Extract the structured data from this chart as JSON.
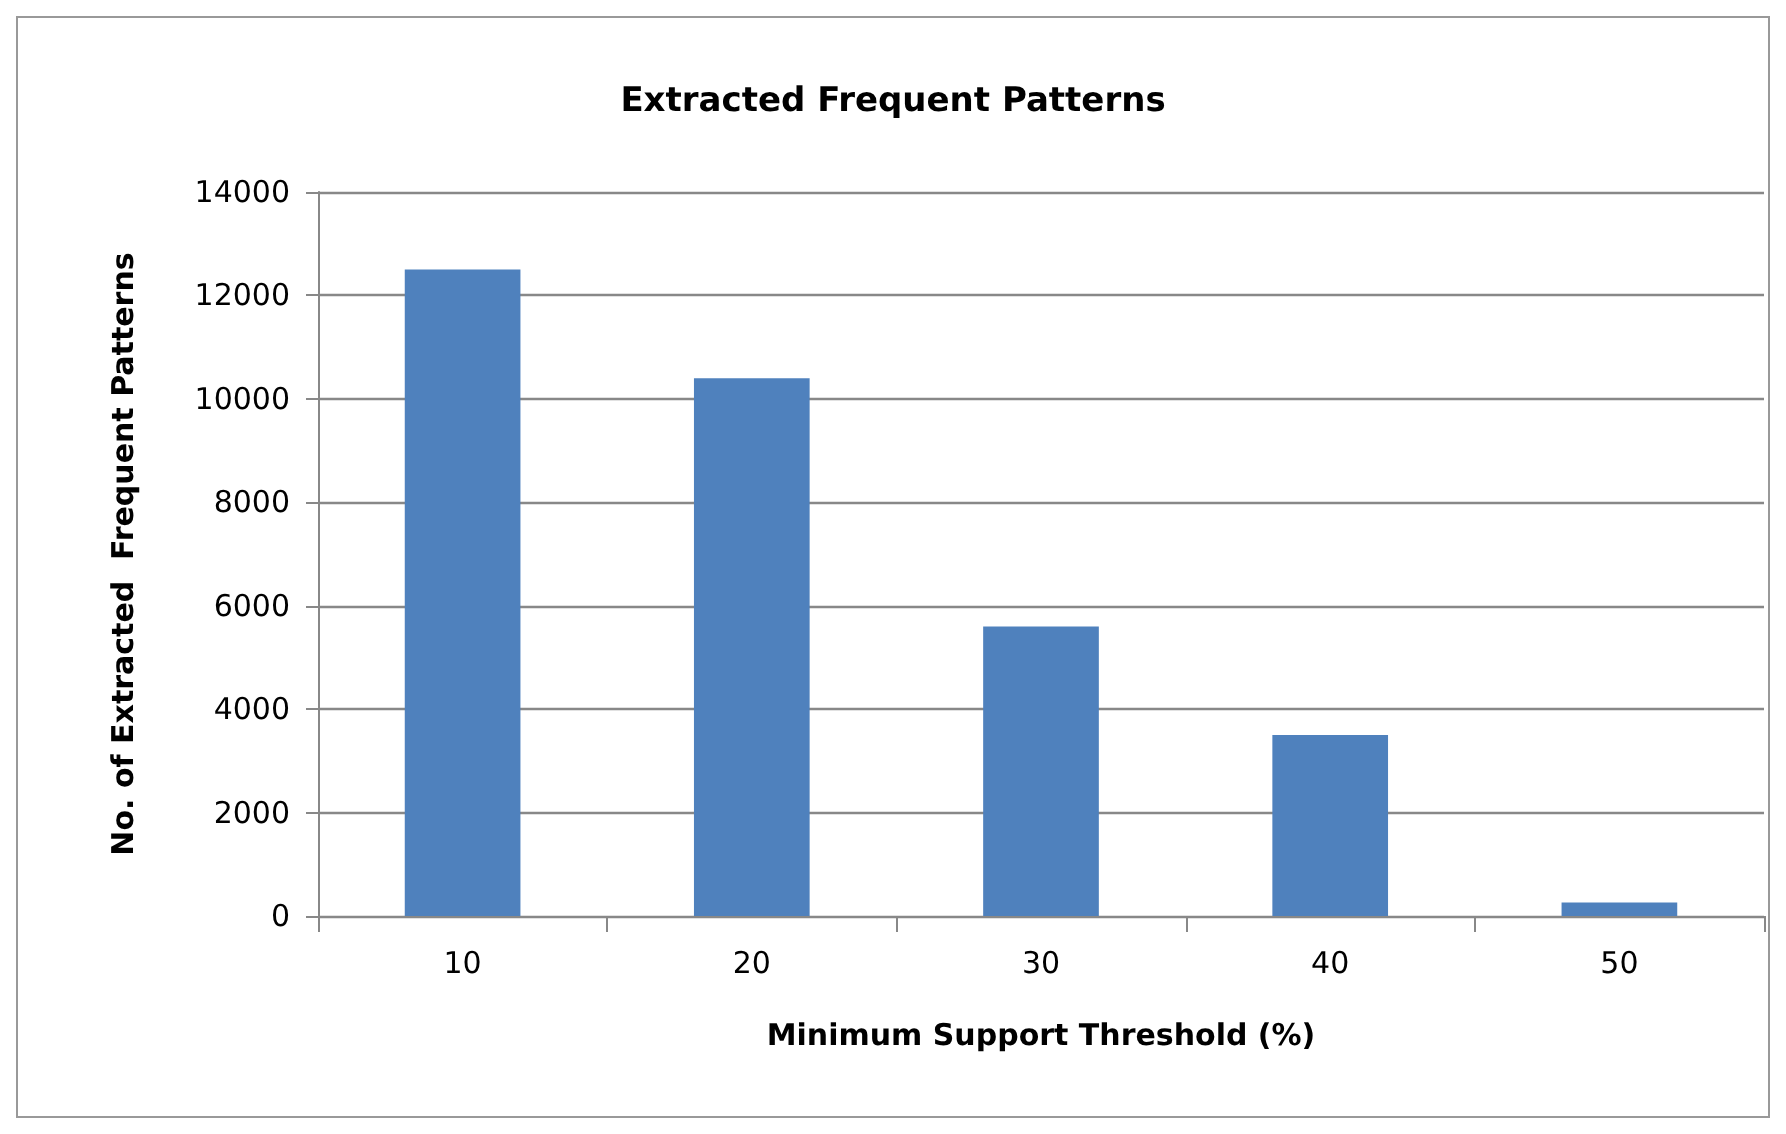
{
  "chart_data": {
    "type": "bar",
    "title": "Extracted Frequent Patterns",
    "xlabel": "Minimum Support Threshold (%)",
    "ylabel": "No. of Extracted  Frequent Patterns",
    "categories": [
      "10",
      "20",
      "30",
      "40",
      "50"
    ],
    "values": [
      12500,
      10400,
      5600,
      3500,
      260
    ],
    "color": "#4f81bd",
    "ylim": [
      0,
      14000
    ],
    "yticks": [
      0,
      2000,
      4000,
      6000,
      8000,
      10000,
      12000,
      14000
    ],
    "grid": "y"
  }
}
